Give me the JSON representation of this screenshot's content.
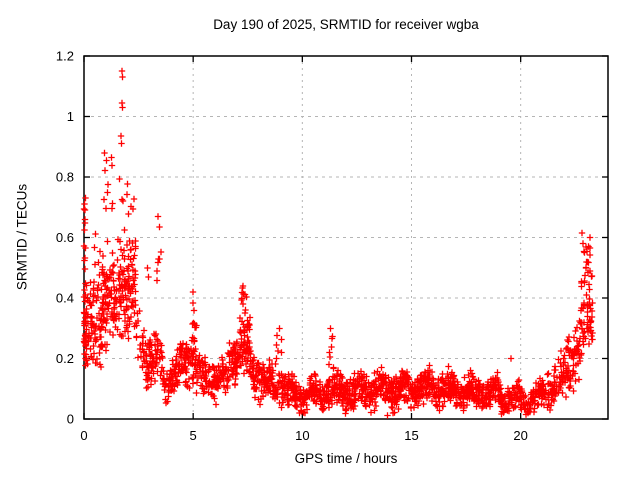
{
  "chart_data": {
    "type": "scatter",
    "title": "Day 190 of 2025, SRMTID for receiver wgba",
    "xlabel": "GPS time / hours",
    "ylabel": "SRMTID / TECUs",
    "xlim": [
      0,
      24
    ],
    "ylim": [
      0,
      1.2
    ],
    "xticks": [
      {
        "v": 0,
        "label": "0"
      },
      {
        "v": 5,
        "label": "5"
      },
      {
        "v": 10,
        "label": "10"
      },
      {
        "v": 15,
        "label": "15"
      },
      {
        "v": 20,
        "label": "20"
      }
    ],
    "yticks": [
      {
        "v": 0,
        "label": "0"
      },
      {
        "v": 0.2,
        "label": "0.2"
      },
      {
        "v": 0.4,
        "label": "0.4"
      },
      {
        "v": 0.6,
        "label": "0.6"
      },
      {
        "v": 0.8,
        "label": "0.8"
      },
      {
        "v": 1,
        "label": "1"
      },
      {
        "v": 1.2,
        "label": "1.2"
      }
    ],
    "grid": true,
    "legend": "none",
    "marker": "plus",
    "marker_color": "#ff0000",
    "grid_color": "#b5b5b5",
    "axis_color": "#000000",
    "seed": 190,
    "series": [
      {
        "name": "SRMTID",
        "profile_format": "[x_start_hr, x_end_hr, n_points, y_center_start, y_center_end, y_spread_start, y_spread_end]",
        "band_profile": [
          [
            0.0,
            0.12,
            40,
            0.3,
            0.3,
            0.14,
            0.14
          ],
          [
            0.0,
            0.1,
            10,
            0.55,
            0.55,
            0.17,
            0.17
          ],
          [
            0.12,
            0.8,
            70,
            0.3,
            0.3,
            0.13,
            0.13
          ],
          [
            0.3,
            0.9,
            12,
            0.55,
            0.52,
            0.15,
            0.15
          ],
          [
            0.8,
            1.5,
            90,
            0.38,
            0.4,
            0.14,
            0.15
          ],
          [
            0.9,
            1.4,
            10,
            0.7,
            0.7,
            0.14,
            0.14
          ],
          [
            1.5,
            2.4,
            110,
            0.45,
            0.42,
            0.16,
            0.16
          ],
          [
            1.6,
            2.3,
            10,
            0.72,
            0.7,
            0.12,
            0.12
          ],
          [
            2.4,
            3.2,
            70,
            0.28,
            0.18,
            0.1,
            0.08
          ],
          [
            3.2,
            3.6,
            30,
            0.2,
            0.2,
            0.09,
            0.09
          ],
          [
            3.3,
            3.55,
            6,
            0.45,
            0.45,
            0.12,
            0.12
          ],
          [
            3.6,
            4.4,
            70,
            0.14,
            0.15,
            0.06,
            0.07
          ],
          [
            4.4,
            5.15,
            80,
            0.19,
            0.21,
            0.08,
            0.09
          ],
          [
            4.9,
            5.1,
            8,
            0.33,
            0.33,
            0.07,
            0.07
          ],
          [
            5.15,
            6.6,
            130,
            0.13,
            0.13,
            0.06,
            0.06
          ],
          [
            6.6,
            7.15,
            55,
            0.17,
            0.24,
            0.07,
            0.09
          ],
          [
            7.15,
            7.6,
            60,
            0.26,
            0.24,
            0.1,
            0.1
          ],
          [
            7.2,
            7.5,
            8,
            0.4,
            0.38,
            0.05,
            0.05
          ],
          [
            7.6,
            8.3,
            70,
            0.16,
            0.12,
            0.07,
            0.06
          ],
          [
            8.3,
            9.3,
            90,
            0.12,
            0.11,
            0.06,
            0.06
          ],
          [
            8.8,
            9.05,
            6,
            0.25,
            0.25,
            0.06,
            0.06
          ],
          [
            9.3,
            11.0,
            170,
            0.085,
            0.08,
            0.045,
            0.045
          ],
          [
            11.0,
            11.45,
            45,
            0.1,
            0.1,
            0.055,
            0.055
          ],
          [
            11.2,
            11.4,
            6,
            0.24,
            0.24,
            0.06,
            0.06
          ],
          [
            11.45,
            13.0,
            160,
            0.085,
            0.095,
            0.05,
            0.05
          ],
          [
            13.0,
            14.5,
            160,
            0.1,
            0.095,
            0.055,
            0.05
          ],
          [
            14.5,
            16.2,
            180,
            0.1,
            0.1,
            0.05,
            0.055
          ],
          [
            16.2,
            17.5,
            140,
            0.1,
            0.095,
            0.05,
            0.05
          ],
          [
            17.5,
            19.0,
            150,
            0.09,
            0.085,
            0.05,
            0.045
          ],
          [
            19.0,
            20.1,
            100,
            0.07,
            0.065,
            0.04,
            0.04
          ],
          [
            20.1,
            21.1,
            90,
            0.06,
            0.07,
            0.035,
            0.04
          ],
          [
            21.1,
            22.1,
            80,
            0.1,
            0.14,
            0.055,
            0.07
          ],
          [
            22.1,
            22.75,
            65,
            0.17,
            0.25,
            0.08,
            0.1
          ],
          [
            22.75,
            23.3,
            60,
            0.33,
            0.35,
            0.13,
            0.14
          ],
          [
            22.9,
            23.3,
            10,
            0.52,
            0.52,
            0.07,
            0.07
          ]
        ],
        "peak_points": [
          [
            1.74,
            1.15
          ],
          [
            1.76,
            1.13
          ],
          [
            1.74,
            1.045
          ],
          [
            1.76,
            1.03
          ],
          [
            1.7,
            0.935
          ],
          [
            1.72,
            0.91
          ],
          [
            0.95,
            0.88
          ],
          [
            1.02,
            0.855
          ],
          [
            3.4,
            0.67
          ],
          [
            3.45,
            0.635
          ],
          [
            0.03,
            0.71
          ],
          [
            0.04,
            0.66
          ],
          [
            0.02,
            0.625
          ],
          [
            2.9,
            0.5
          ],
          [
            2.95,
            0.47
          ],
          [
            5.0,
            0.42
          ],
          [
            7.28,
            0.44
          ],
          [
            11.3,
            0.3
          ],
          [
            8.95,
            0.3
          ],
          [
            19.55,
            0.2
          ],
          [
            13.9,
            0.012
          ],
          [
            22.82,
            0.615
          ],
          [
            22.86,
            0.58
          ],
          [
            22.92,
            0.55
          ],
          [
            23.0,
            0.5
          ],
          [
            23.1,
            0.57
          ],
          [
            23.18,
            0.6
          ]
        ]
      }
    ]
  }
}
